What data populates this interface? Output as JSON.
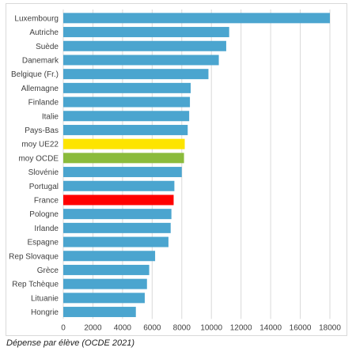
{
  "caption": "Dépense par élève (OCDE 2021)",
  "colors": {
    "default": "#4ba5cf",
    "highlight_eu": "#fde400",
    "highlight_oecd": "#8bbb3c",
    "highlight_france": "#ff0000",
    "grid": "#d9d9d9",
    "axis_text": "#404040"
  },
  "chart_data": {
    "type": "bar",
    "orientation": "horizontal",
    "grid": true,
    "xlim": [
      0,
      18000
    ],
    "x_ticks": [
      "0",
      "2000",
      "4000",
      "6000",
      "8000",
      "10000",
      "12000",
      "14000",
      "16000",
      "18000"
    ],
    "categories": [
      "Luxembourg",
      "Autriche",
      "Suède",
      "Danemark",
      "Belgique (Fr.)",
      "Allemagne",
      "Finlande",
      "Italie",
      "Pays-Bas",
      "moy UE22",
      "moy OCDE",
      "Slovénie",
      "Portugal",
      "France",
      "Pologne",
      "Irlande",
      "Espagne",
      "Rep Slovaque",
      "Grèce",
      "Rep Tchèque",
      "Lituanie",
      "Hongrie"
    ],
    "values": [
      18000,
      11200,
      11000,
      10500,
      9800,
      8600,
      8550,
      8500,
      8400,
      8200,
      8150,
      8000,
      7500,
      7450,
      7300,
      7250,
      7100,
      6200,
      5800,
      5650,
      5500,
      4900
    ],
    "bar_colors": [
      "#4ba5cf",
      "#4ba5cf",
      "#4ba5cf",
      "#4ba5cf",
      "#4ba5cf",
      "#4ba5cf",
      "#4ba5cf",
      "#4ba5cf",
      "#4ba5cf",
      "#fde400",
      "#8bbb3c",
      "#4ba5cf",
      "#4ba5cf",
      "#ff0000",
      "#4ba5cf",
      "#4ba5cf",
      "#4ba5cf",
      "#4ba5cf",
      "#4ba5cf",
      "#4ba5cf",
      "#4ba5cf",
      "#4ba5cf"
    ]
  }
}
